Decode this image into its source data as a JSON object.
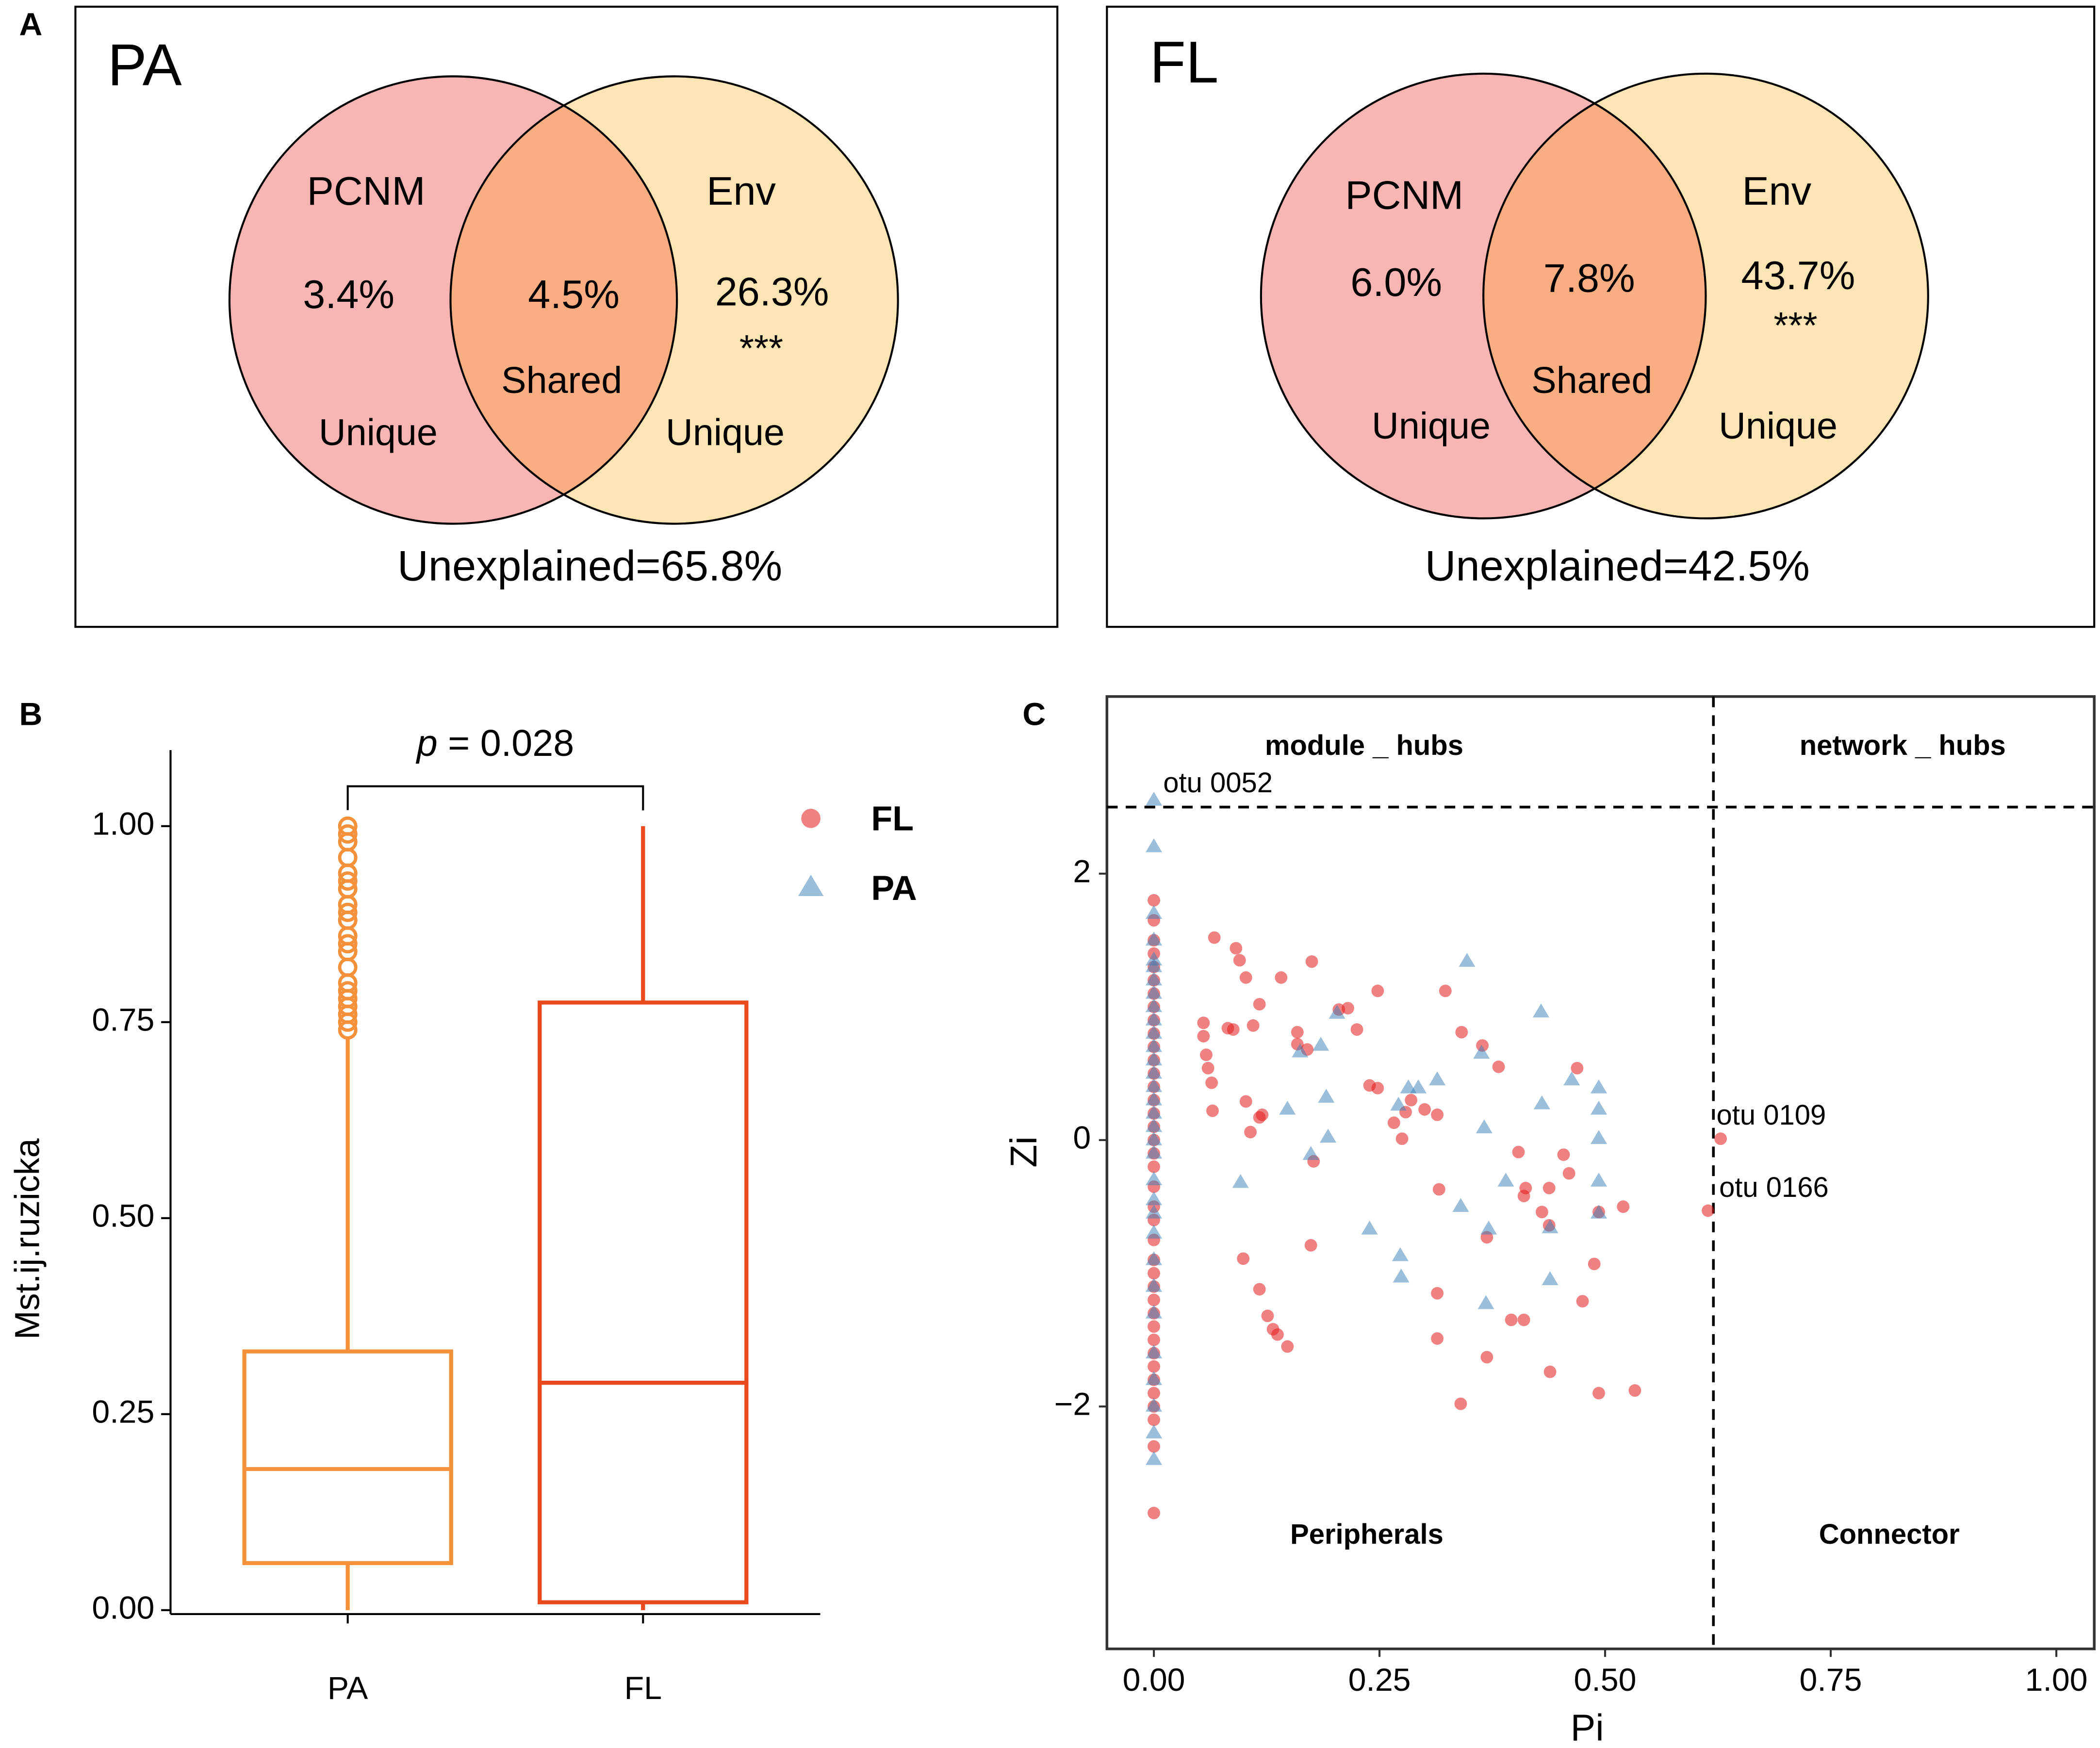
{
  "chart_data": [
    {
      "type": "venn",
      "panel": "A",
      "title": "PA",
      "sets": [
        {
          "name": "PCNM",
          "value": 3.4,
          "value_label": "3.4%",
          "region_label": "Unique",
          "color": "#f9b4b4"
        },
        {
          "name": "Env",
          "value": 26.3,
          "value_label": "26.3%",
          "significance": "***",
          "region_label": "Unique",
          "color": "#fde4b4"
        }
      ],
      "shared": {
        "name": "Shared",
        "value": 4.5,
        "value_label": "4.5%",
        "color": "#f9ad80"
      },
      "unexplained": "Unexplained=65.8%"
    },
    {
      "type": "venn",
      "title": "FL",
      "sets": [
        {
          "name": "PCNM",
          "value": 6.0,
          "value_label": "6.0%",
          "region_label": "Unique",
          "color": "#f9b4b4"
        },
        {
          "name": "Env",
          "value": 43.7,
          "value_label": "43.7%",
          "significance": "***",
          "region_label": "Unique",
          "color": "#fde4b4"
        }
      ],
      "shared": {
        "name": "Shared",
        "value": 7.8,
        "value_label": "7.8%",
        "color": "#f9ad80"
      },
      "unexplained": "Unexplained=42.5%"
    },
    {
      "type": "box",
      "panel": "B",
      "y_label": "Mst.ij.ruzicka",
      "categories": [
        "PA",
        "FL"
      ],
      "boxes": [
        {
          "min": 0.0,
          "q1": 0.06,
          "median": 0.18,
          "q3": 0.33,
          "max": 0.73,
          "color": "#f5913a",
          "outliers": [
            0.74,
            0.75,
            0.76,
            0.77,
            0.78,
            0.79,
            0.8,
            0.82,
            0.84,
            0.85,
            0.86,
            0.88,
            0.89,
            0.9,
            0.92,
            0.93,
            0.94,
            0.96,
            0.98,
            0.99,
            1.0
          ]
        },
        {
          "min": 0.0,
          "q1": 0.01,
          "median": 0.29,
          "q3": 0.775,
          "max": 1.0,
          "color": "#e8491d",
          "outliers": []
        }
      ],
      "annotation": [
        "p",
        " = 0.028"
      ],
      "ylim": [
        -0.005,
        1.097
      ],
      "yticks": [
        {
          "value": 0,
          "label": "0.00"
        },
        {
          "value": 0.25,
          "label": "0.25"
        },
        {
          "value": 0.5,
          "label": "0.50"
        },
        {
          "value": 0.75,
          "label": "0.75"
        },
        {
          "value": 1,
          "label": "1.00"
        }
      ]
    },
    {
      "type": "scatter",
      "panel": "C",
      "x_label": "Pi",
      "y_label": "Zi",
      "xlim": [
        -0.052,
        1.042
      ],
      "ylim": [
        -3.82,
        3.33
      ],
      "xticks": [
        {
          "value": 0,
          "label": "0.00"
        },
        {
          "value": 0.25,
          "label": "0.25"
        },
        {
          "value": 0.5,
          "label": "0.50"
        },
        {
          "value": 0.75,
          "label": "0.75"
        },
        {
          "value": 1,
          "label": "1.00"
        }
      ],
      "yticks": [
        {
          "value": -2,
          "label": "−2"
        },
        0,
        2
      ],
      "thresholds": {
        "x": 0.62,
        "y": 2.5
      },
      "region_labels": [
        "module _ hubs",
        "network _ hubs",
        "Peripherals",
        "Connector"
      ],
      "annotations": [
        "otu 0052",
        "otu 0109",
        "otu 0166"
      ],
      "series": [
        {
          "name": "FL",
          "color": "#e41a1c",
          "marker": "circle",
          "x": [
            0,
            0,
            0,
            0,
            0,
            0,
            0,
            0,
            0,
            0,
            0,
            0,
            0,
            0,
            0,
            0,
            0,
            0,
            0,
            0,
            0,
            0,
            0,
            0,
            0,
            0,
            0,
            0,
            0,
            0,
            0,
            0,
            0,
            0,
            0,
            0,
            0,
            0,
            0,
            0.067,
            0.091,
            0.095,
            0.102,
            0.055,
            0.055,
            0.058,
            0.06,
            0.064,
            0.065,
            0.082,
            0.088,
            0.11,
            0.117,
            0.141,
            0.175,
            0.159,
            0.17,
            0.159,
            0.102,
            0.12,
            0.107,
            0.117,
            0.099,
            0.117,
            0.126,
            0.132,
            0.137,
            0.148,
            0.174,
            0.177,
            0.205,
            0.215,
            0.225,
            0.248,
            0.239,
            0.248,
            0.266,
            0.275,
            0.279,
            0.285,
            0.3,
            0.314,
            0.323,
            0.316,
            0.314,
            0.314,
            0.341,
            0.34,
            0.364,
            0.369,
            0.369,
            0.382,
            0.396,
            0.41,
            0.404,
            0.41,
            0.412,
            0.43,
            0.438,
            0.438,
            0.439,
            0.454,
            0.46,
            0.469,
            0.475,
            0.488,
            0.493,
            0.493,
            0.52,
            0.533,
            0.628,
            0.614
          ],
          "values": [
            1.8,
            1.65,
            1.5,
            1.4,
            1.3,
            1.2,
            1.1,
            1.0,
            0.9,
            0.8,
            0.7,
            0.6,
            0.5,
            0.4,
            0.3,
            0.2,
            0.1,
            0,
            -0.1,
            -0.2,
            -0.35,
            -0.5,
            -0.6,
            -0.75,
            -0.9,
            -1.0,
            -1.1,
            -1.2,
            -1.3,
            -1.4,
            -1.5,
            -1.6,
            -1.7,
            -1.8,
            -1.9,
            -2.0,
            -2.1,
            -2.3,
            -2.8,
            1.52,
            1.44,
            1.35,
            1.22,
            0.88,
            0.78,
            0.64,
            0.54,
            0.43,
            0.22,
            0.84,
            0.83,
            0.86,
            1.02,
            1.22,
            1.34,
            0.81,
            0.68,
            0.72,
            0.29,
            0.19,
            0.06,
            0.17,
            -0.89,
            -1.12,
            -1.32,
            -1.42,
            -1.46,
            -1.55,
            -0.79,
            -0.16,
            0.98,
            0.99,
            0.83,
            1.12,
            0.41,
            0.39,
            0.13,
            0.01,
            0.21,
            0.3,
            0.23,
            0.19,
            1.12,
            -0.37,
            -1.15,
            -1.49,
            0.81,
            -1.98,
            0.71,
            -0.73,
            -1.63,
            0.55,
            -1.35,
            -1.35,
            -0.09,
            -0.42,
            -0.36,
            -0.54,
            -0.64,
            -0.36,
            -1.74,
            -0.11,
            -0.25,
            0.54,
            -1.21,
            -0.93,
            -0.54,
            -1.9,
            -0.5,
            -1.88,
            0.01,
            -0.53
          ]
        },
        {
          "name": "PA",
          "color": "#377eb8",
          "marker": "triangle",
          "x": [
            0,
            0,
            0,
            0,
            0,
            0,
            0,
            0,
            0,
            0,
            0,
            0,
            0,
            0,
            0,
            0,
            0,
            0,
            0,
            0,
            0,
            0,
            0,
            0,
            0,
            0,
            0,
            0,
            0,
            0,
            0,
            0,
            0.162,
            0.185,
            0.191,
            0.193,
            0.148,
            0.096,
            0.174,
            0.203,
            0.282,
            0.271,
            0.293,
            0.314,
            0.239,
            0.273,
            0.274,
            0.347,
            0.363,
            0.366,
            0.34,
            0.371,
            0.368,
            0.39,
            0.429,
            0.43,
            0.439,
            0.439,
            0.463,
            0.493,
            0.493,
            0.493,
            0.493,
            0.493
          ],
          "values": [
            2.55,
            2.2,
            1.7,
            1.5,
            1.35,
            1.3,
            1.2,
            1.1,
            1.0,
            0.9,
            0.8,
            0.7,
            0.6,
            0.5,
            0.4,
            0.3,
            0.2,
            0.1,
            0,
            -0.1,
            -0.3,
            -0.45,
            -0.55,
            -0.7,
            -0.9,
            -1.1,
            -1.3,
            -1.6,
            -1.8,
            -2.0,
            -2.2,
            -2.4,
            0.66,
            0.71,
            0.32,
            0.02,
            0.23,
            -0.32,
            -0.11,
            0.95,
            0.39,
            0.26,
            0.39,
            0.45,
            -0.67,
            -0.87,
            -1.03,
            1.34,
            0.65,
            0.09,
            -0.5,
            -0.67,
            -1.23,
            -0.31,
            0.96,
            0.27,
            -0.66,
            -1.05,
            0.45,
            0.39,
            0.01,
            -0.31,
            -0.55,
            0.23
          ]
        }
      ]
    }
  ]
}
